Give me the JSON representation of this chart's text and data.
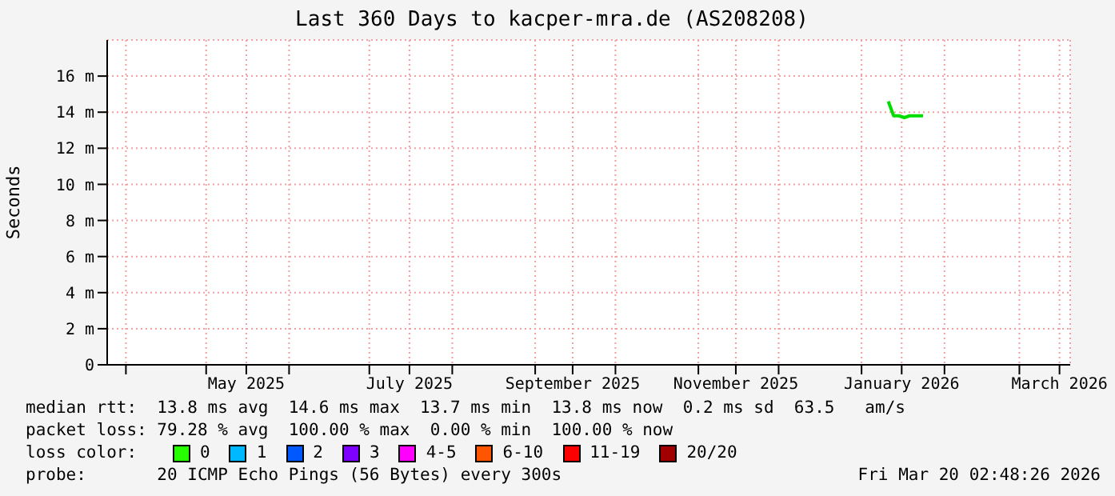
{
  "chart_data": {
    "type": "line",
    "title": "Last 360 Days to kacper-mra.de (AS208208)",
    "ylabel": "Seconds",
    "x": [
      "2026-01-11",
      "2026-01-12",
      "2026-01-13",
      "2026-01-15",
      "2026-01-17",
      "2026-01-19",
      "2026-01-21",
      "2026-01-23",
      "2026-01-24"
    ],
    "series": [
      {
        "color": "#00dd00",
        "values": [
          14.6,
          14.2,
          13.8,
          13.8,
          13.7,
          13.8,
          13.8,
          13.8,
          13.8
        ]
      }
    ],
    "xlim": [
      "2025-03-25",
      "2026-03-20"
    ],
    "xticks": [
      {
        "value": "2025-04-01",
        "label": null
      },
      {
        "value": "2025-05-01",
        "label": null
      },
      {
        "value": "2025-05-16",
        "label": "May 2025"
      },
      {
        "value": "2025-06-01",
        "label": null
      },
      {
        "value": "2025-07-01",
        "label": null
      },
      {
        "value": "2025-07-16",
        "label": "July 2025"
      },
      {
        "value": "2025-08-01",
        "label": null
      },
      {
        "value": "2025-09-01",
        "label": null
      },
      {
        "value": "2025-09-15",
        "label": "September 2025"
      },
      {
        "value": "2025-10-01",
        "label": null
      },
      {
        "value": "2025-11-01",
        "label": null
      },
      {
        "value": "2025-11-15",
        "label": "November 2025"
      },
      {
        "value": "2025-12-01",
        "label": null
      },
      {
        "value": "2026-01-01",
        "label": null
      },
      {
        "value": "2026-01-16",
        "label": "January 2026"
      },
      {
        "value": "2026-02-01",
        "label": null
      },
      {
        "value": "2026-03-01",
        "label": null
      },
      {
        "value": "2026-03-16",
        "label": "March 2026"
      }
    ],
    "ylim": [
      0,
      18
    ],
    "yticks": [
      0,
      {
        "value": 2,
        "label": "2 m"
      },
      {
        "value": 4,
        "label": "4 m"
      },
      {
        "value": 6,
        "label": "6 m"
      },
      {
        "value": 8,
        "label": "8 m"
      },
      {
        "value": 10,
        "label": "10 m"
      },
      {
        "value": 12,
        "label": "12 m"
      },
      {
        "value": 14,
        "label": "14 m"
      },
      {
        "value": 16,
        "label": "16 m"
      }
    ],
    "grid": true,
    "marker": "none",
    "line_style": "solid",
    "annotations": [
      "median rtt:  13.8 ms avg  14.6 ms max  13.7 ms min  13.8 ms now  0.2 ms sd  63.5   am/s",
      "packet loss: 79.28 % avg  100.00 % max  0.00 % min  100.00 % now",
      "loss color:",
      "0",
      "1",
      "2",
      "3",
      "4-5",
      "6-10",
      "11-19",
      "20/20",
      "probe:       20 ICMP Echo Pings (56 Bytes) every 300s",
      "Fri Mar 20 02:48:26 2026"
    ]
  }
}
